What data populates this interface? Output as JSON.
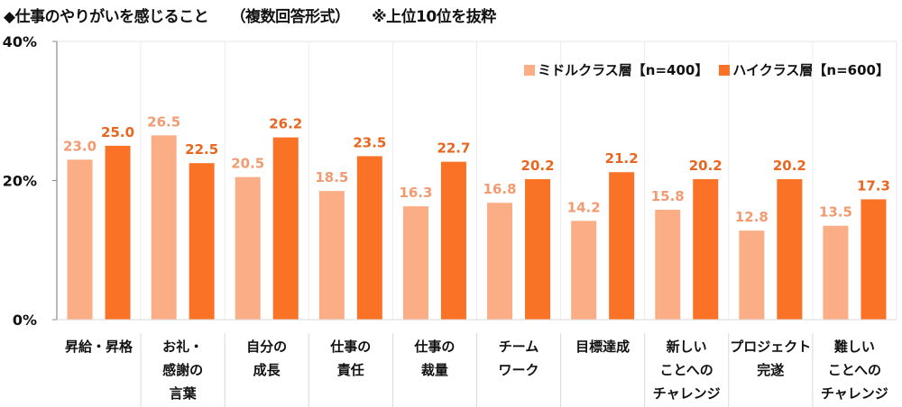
{
  "chart_data": {
    "type": "bar",
    "title": "◆仕事のやりがいを感じること　　（複数回答形式）　　※上位10位を抜粋",
    "xlabel": "",
    "ylabel": "",
    "ylim": [
      0,
      40
    ],
    "yticks": [
      0,
      20,
      40
    ],
    "ytick_labels": [
      "0%",
      "20%",
      "40%"
    ],
    "grid": "vertical category separators",
    "legend_position": "top-right",
    "categories": [
      "昇給・昇格",
      "お礼・\n感謝の\n言葉",
      "自分の\n成長",
      "仕事の\n責任",
      "仕事の\n裁量",
      "チーム\nワーク",
      "目標達成",
      "新しい\nことへの\nチャレンジ",
      "プロジェクト\n完遂",
      "難しい\nことへの\nチャレンジ"
    ],
    "series": [
      {
        "name": "ミドルクラス層【n=400】",
        "color": "#FBAE85",
        "label_color": "#F29A70",
        "values": [
          23.0,
          26.5,
          20.5,
          18.5,
          16.3,
          16.8,
          14.2,
          15.8,
          12.8,
          13.5
        ],
        "labels": [
          "23.0",
          "26.5",
          "20.5",
          "18.5",
          "16.3",
          "16.8",
          "14.2",
          "15.8",
          "12.8",
          "13.5"
        ]
      },
      {
        "name": "ハイクラス層【n=600】",
        "color": "#F97226",
        "label_color": "#E8661F",
        "values": [
          25.0,
          22.5,
          26.2,
          23.5,
          22.7,
          20.2,
          21.2,
          20.2,
          20.2,
          17.3
        ],
        "labels": [
          "25.0",
          "22.5",
          "26.2",
          "23.5",
          "22.7",
          "20.2",
          "21.2",
          "20.2",
          "20.2",
          "17.3"
        ]
      }
    ]
  }
}
